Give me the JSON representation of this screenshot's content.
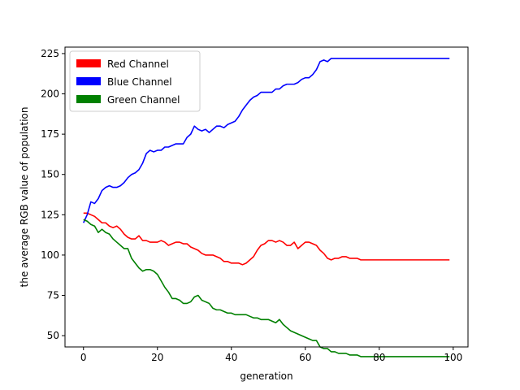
{
  "chart_data": {
    "type": "line",
    "title": "",
    "xlabel": "generation",
    "ylabel": "the average RGB value of population",
    "xlim": [
      -5,
      104
    ],
    "ylim": [
      43,
      229
    ],
    "xticks": [
      0,
      20,
      40,
      60,
      80,
      100
    ],
    "yticks": [
      50,
      75,
      100,
      125,
      150,
      175,
      200,
      225
    ],
    "grid": false,
    "legend_position": "upper-left",
    "series": [
      {
        "name": "Red Channel",
        "color": "#ff0000",
        "points": [
          [
            0,
            126
          ],
          [
            1,
            126
          ],
          [
            2,
            125
          ],
          [
            3,
            124
          ],
          [
            4,
            122
          ],
          [
            5,
            120
          ],
          [
            6,
            120
          ],
          [
            7,
            118
          ],
          [
            8,
            117
          ],
          [
            9,
            118
          ],
          [
            10,
            116
          ],
          [
            11,
            113
          ],
          [
            12,
            111
          ],
          [
            13,
            110
          ],
          [
            14,
            110
          ],
          [
            15,
            112
          ],
          [
            16,
            109
          ],
          [
            17,
            109
          ],
          [
            18,
            108
          ],
          [
            19,
            108
          ],
          [
            20,
            108
          ],
          [
            21,
            109
          ],
          [
            22,
            108
          ],
          [
            23,
            106
          ],
          [
            24,
            107
          ],
          [
            25,
            108
          ],
          [
            26,
            108
          ],
          [
            27,
            107
          ],
          [
            28,
            107
          ],
          [
            29,
            105
          ],
          [
            30,
            104
          ],
          [
            31,
            103
          ],
          [
            32,
            101
          ],
          [
            33,
            100
          ],
          [
            34,
            100
          ],
          [
            35,
            100
          ],
          [
            36,
            99
          ],
          [
            37,
            98
          ],
          [
            38,
            96
          ],
          [
            39,
            96
          ],
          [
            40,
            95
          ],
          [
            41,
            95
          ],
          [
            42,
            95
          ],
          [
            43,
            94
          ],
          [
            44,
            95
          ],
          [
            45,
            97
          ],
          [
            46,
            99
          ],
          [
            47,
            103
          ],
          [
            48,
            106
          ],
          [
            49,
            107
          ],
          [
            50,
            109
          ],
          [
            51,
            109
          ],
          [
            52,
            108
          ],
          [
            53,
            109
          ],
          [
            54,
            108
          ],
          [
            55,
            106
          ],
          [
            56,
            106
          ],
          [
            57,
            108
          ],
          [
            58,
            104
          ],
          [
            59,
            106
          ],
          [
            60,
            108
          ],
          [
            61,
            108
          ],
          [
            62,
            107
          ],
          [
            63,
            106
          ],
          [
            64,
            103
          ],
          [
            65,
            101
          ],
          [
            66,
            98
          ],
          [
            67,
            97
          ],
          [
            68,
            98
          ],
          [
            69,
            98
          ],
          [
            70,
            99
          ],
          [
            71,
            99
          ],
          [
            72,
            98
          ],
          [
            73,
            98
          ],
          [
            74,
            98
          ],
          [
            75,
            97
          ],
          [
            80,
            97
          ],
          [
            85,
            97
          ],
          [
            90,
            97
          ],
          [
            95,
            97
          ],
          [
            99,
            97
          ]
        ]
      },
      {
        "name": "Blue Channel",
        "color": "#0000ff",
        "points": [
          [
            0,
            120
          ],
          [
            1,
            125
          ],
          [
            2,
            133
          ],
          [
            3,
            132
          ],
          [
            4,
            135
          ],
          [
            5,
            140
          ],
          [
            6,
            142
          ],
          [
            7,
            143
          ],
          [
            8,
            142
          ],
          [
            9,
            142
          ],
          [
            10,
            143
          ],
          [
            11,
            145
          ],
          [
            12,
            148
          ],
          [
            13,
            150
          ],
          [
            14,
            151
          ],
          [
            15,
            153
          ],
          [
            16,
            157
          ],
          [
            17,
            163
          ],
          [
            18,
            165
          ],
          [
            19,
            164
          ],
          [
            20,
            165
          ],
          [
            21,
            165
          ],
          [
            22,
            167
          ],
          [
            23,
            167
          ],
          [
            24,
            168
          ],
          [
            25,
            169
          ],
          [
            26,
            169
          ],
          [
            27,
            169
          ],
          [
            28,
            173
          ],
          [
            29,
            175
          ],
          [
            30,
            180
          ],
          [
            31,
            178
          ],
          [
            32,
            177
          ],
          [
            33,
            178
          ],
          [
            34,
            176
          ],
          [
            35,
            178
          ],
          [
            36,
            180
          ],
          [
            37,
            180
          ],
          [
            38,
            179
          ],
          [
            39,
            181
          ],
          [
            40,
            182
          ],
          [
            41,
            183
          ],
          [
            42,
            186
          ],
          [
            43,
            190
          ],
          [
            44,
            193
          ],
          [
            45,
            196
          ],
          [
            46,
            198
          ],
          [
            47,
            199
          ],
          [
            48,
            201
          ],
          [
            49,
            201
          ],
          [
            50,
            201
          ],
          [
            51,
            201
          ],
          [
            52,
            203
          ],
          [
            53,
            203
          ],
          [
            54,
            205
          ],
          [
            55,
            206
          ],
          [
            56,
            206
          ],
          [
            57,
            206
          ],
          [
            58,
            207
          ],
          [
            59,
            209
          ],
          [
            60,
            210
          ],
          [
            61,
            210
          ],
          [
            62,
            212
          ],
          [
            63,
            215
          ],
          [
            64,
            220
          ],
          [
            65,
            221
          ],
          [
            66,
            220
          ],
          [
            67,
            222
          ],
          [
            68,
            222
          ],
          [
            69,
            222
          ],
          [
            70,
            222
          ],
          [
            71,
            222
          ],
          [
            72,
            222
          ],
          [
            73,
            222
          ],
          [
            74,
            222
          ],
          [
            75,
            222
          ],
          [
            80,
            222
          ],
          [
            85,
            222
          ],
          [
            90,
            222
          ],
          [
            95,
            222
          ],
          [
            99,
            222
          ]
        ]
      },
      {
        "name": "Green Channel",
        "color": "#008000",
        "points": [
          [
            0,
            122
          ],
          [
            1,
            121
          ],
          [
            2,
            119
          ],
          [
            3,
            118
          ],
          [
            4,
            114
          ],
          [
            5,
            116
          ],
          [
            6,
            114
          ],
          [
            7,
            113
          ],
          [
            8,
            110
          ],
          [
            9,
            108
          ],
          [
            10,
            106
          ],
          [
            11,
            104
          ],
          [
            12,
            104
          ],
          [
            13,
            98
          ],
          [
            14,
            95
          ],
          [
            15,
            92
          ],
          [
            16,
            90
          ],
          [
            17,
            91
          ],
          [
            18,
            91
          ],
          [
            19,
            90
          ],
          [
            20,
            88
          ],
          [
            21,
            84
          ],
          [
            22,
            80
          ],
          [
            23,
            77
          ],
          [
            24,
            73
          ],
          [
            25,
            73
          ],
          [
            26,
            72
          ],
          [
            27,
            70
          ],
          [
            28,
            70
          ],
          [
            29,
            71
          ],
          [
            30,
            74
          ],
          [
            31,
            75
          ],
          [
            32,
            72
          ],
          [
            33,
            71
          ],
          [
            34,
            70
          ],
          [
            35,
            67
          ],
          [
            36,
            66
          ],
          [
            37,
            66
          ],
          [
            38,
            65
          ],
          [
            39,
            64
          ],
          [
            40,
            64
          ],
          [
            41,
            63
          ],
          [
            42,
            63
          ],
          [
            43,
            63
          ],
          [
            44,
            63
          ],
          [
            45,
            62
          ],
          [
            46,
            61
          ],
          [
            47,
            61
          ],
          [
            48,
            60
          ],
          [
            49,
            60
          ],
          [
            50,
            60
          ],
          [
            51,
            59
          ],
          [
            52,
            58
          ],
          [
            53,
            60
          ],
          [
            54,
            57
          ],
          [
            55,
            55
          ],
          [
            56,
            53
          ],
          [
            57,
            52
          ],
          [
            58,
            51
          ],
          [
            59,
            50
          ],
          [
            60,
            49
          ],
          [
            61,
            48
          ],
          [
            62,
            47
          ],
          [
            63,
            47
          ],
          [
            64,
            43
          ],
          [
            65,
            42
          ],
          [
            66,
            42
          ],
          [
            67,
            40
          ],
          [
            68,
            40
          ],
          [
            69,
            39
          ],
          [
            70,
            39
          ],
          [
            71,
            39
          ],
          [
            72,
            38
          ],
          [
            73,
            38
          ],
          [
            74,
            38
          ],
          [
            75,
            37
          ],
          [
            80,
            37
          ],
          [
            85,
            37
          ],
          [
            90,
            37
          ],
          [
            95,
            37
          ],
          [
            99,
            37
          ]
        ]
      }
    ]
  }
}
